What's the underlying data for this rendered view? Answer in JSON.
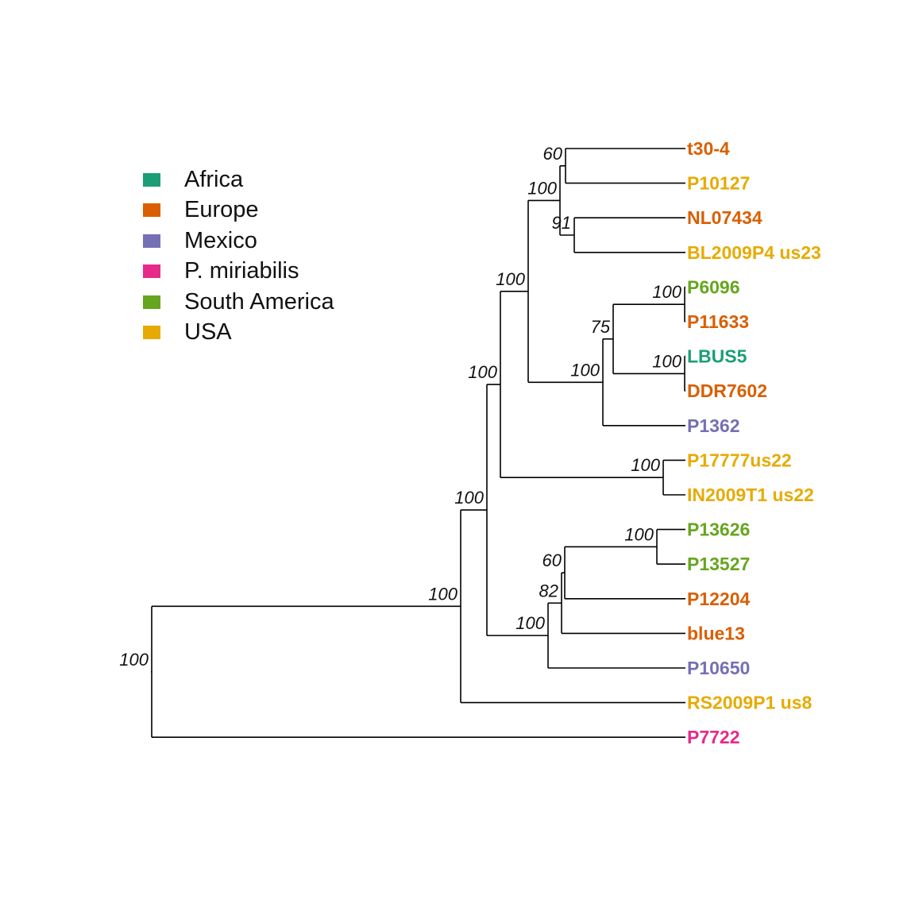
{
  "legend": {
    "items": [
      {
        "label": "Africa",
        "color": "#1b9e77"
      },
      {
        "label": "Europe",
        "color": "#d95f02"
      },
      {
        "label": "Mexico",
        "color": "#7570b3"
      },
      {
        "label": "P. miriabilis",
        "color": "#e7298a"
      },
      {
        "label": "South America",
        "color": "#66a61e"
      },
      {
        "label": "USA",
        "color": "#e6ab02"
      }
    ]
  },
  "tree": {
    "tips": [
      {
        "id": "t30-4",
        "label": "t30-4",
        "region": "Europe"
      },
      {
        "id": "P10127",
        "label": "P10127",
        "region": "USA"
      },
      {
        "id": "NL07434",
        "label": "NL07434",
        "region": "Europe"
      },
      {
        "id": "BL2009P4_us23",
        "label": "BL2009P4 us23",
        "region": "USA"
      },
      {
        "id": "P6096",
        "label": "P6096",
        "region": "South America"
      },
      {
        "id": "P11633",
        "label": "P11633",
        "region": "Europe"
      },
      {
        "id": "LBUS5",
        "label": "LBUS5",
        "region": "Africa"
      },
      {
        "id": "DDR7602",
        "label": "DDR7602",
        "region": "Europe"
      },
      {
        "id": "P1362",
        "label": "P1362",
        "region": "Mexico"
      },
      {
        "id": "P17777us22",
        "label": "P17777us22",
        "region": "USA"
      },
      {
        "id": "IN2009T1_us22",
        "label": "IN2009T1 us22",
        "region": "USA"
      },
      {
        "id": "P13626",
        "label": "P13626",
        "region": "South America"
      },
      {
        "id": "P13527",
        "label": "P13527",
        "region": "South America"
      },
      {
        "id": "P12204",
        "label": "P12204",
        "region": "Europe"
      },
      {
        "id": "blue13",
        "label": "blue13",
        "region": "Europe"
      },
      {
        "id": "P10650",
        "label": "P10650",
        "region": "Mexico"
      },
      {
        "id": "RS2009P1_us8",
        "label": "RS2009P1 us8",
        "region": "USA"
      },
      {
        "id": "P7722",
        "label": "P7722",
        "region": "P. miriabilis"
      }
    ],
    "internal_nodes": [
      {
        "id": "n1",
        "support": "100",
        "children": [
          "P7722",
          "n2"
        ]
      },
      {
        "id": "n2",
        "support": "100",
        "children": [
          "n3",
          "RS2009P1_us8"
        ]
      },
      {
        "id": "n3",
        "support": "100",
        "children": [
          "n4",
          "n13"
        ]
      },
      {
        "id": "n4",
        "support": "100",
        "children": [
          "n5",
          "n12"
        ]
      },
      {
        "id": "n5",
        "support": "100",
        "children": [
          "n6",
          "n9"
        ]
      },
      {
        "id": "n6",
        "support": "100",
        "children": [
          "n7",
          "n8"
        ]
      },
      {
        "id": "n7",
        "support": "60",
        "children": [
          "t30-4",
          "P10127"
        ]
      },
      {
        "id": "n8",
        "support": "91",
        "children": [
          "NL07434",
          "BL2009P4_us23"
        ]
      },
      {
        "id": "n9",
        "support": "100",
        "children": [
          "n10",
          "P1362"
        ]
      },
      {
        "id": "n10",
        "support": "75",
        "children": [
          "n11",
          "n11b"
        ]
      },
      {
        "id": "n11",
        "support": "100",
        "children": [
          "P6096",
          "P11633"
        ]
      },
      {
        "id": "n11b",
        "support": "100",
        "children": [
          "LBUS5",
          "DDR7602"
        ]
      },
      {
        "id": "n12",
        "support": "100",
        "children": [
          "P17777us22",
          "IN2009T1_us22"
        ]
      },
      {
        "id": "n13",
        "support": "100",
        "children": [
          "n14",
          "P10650"
        ]
      },
      {
        "id": "n14",
        "support": "82",
        "children": [
          "n15",
          "blue13"
        ]
      },
      {
        "id": "n15",
        "support": "60",
        "children": [
          "n16",
          "P12204"
        ]
      },
      {
        "id": "n16",
        "support": "100",
        "children": [
          "P13626",
          "P13527"
        ]
      }
    ]
  }
}
